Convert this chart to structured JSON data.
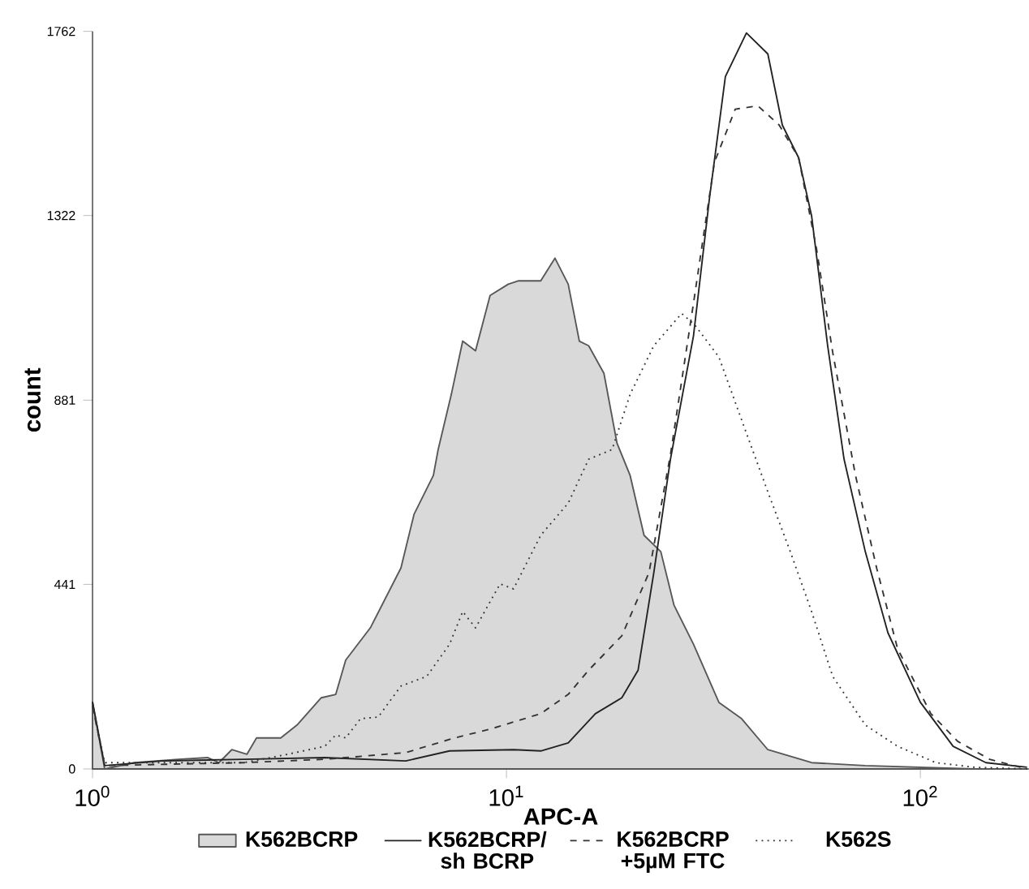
{
  "chart_data": {
    "type": "line",
    "xlabel": "APC-A",
    "ylabel": "count",
    "log": "x",
    "xlim": [
      1,
      183
    ],
    "ylim": [
      0,
      1762
    ],
    "xticks": [
      {
        "value": 1,
        "label": "10$^{0}$"
      },
      {
        "value": 10,
        "label": "10$^{1}$"
      },
      {
        "value": 100,
        "label": "10$^{2}$"
      }
    ],
    "yticks": [
      0,
      441,
      881,
      1322,
      1762
    ],
    "grid": false,
    "legend": "bottom",
    "marker": "none",
    "series": [
      {
        "name": "K562BCRP",
        "type": "area",
        "color": "#d9d9d9",
        "line_style": "solid",
        "x": [
          1,
          1.07,
          1.26,
          1.61,
          1.9,
          2.02,
          2.17,
          2.36,
          2.49,
          2.85,
          3.12,
          3.57,
          3.87,
          4.09,
          4.69,
          5.56,
          5.98,
          6.66,
          6.84,
          7.36,
          7.84,
          8.42,
          9.13,
          10.1,
          10.7,
          12.1,
          13.1,
          14.1,
          15,
          15.8,
          17.2,
          18.5,
          19.9,
          21.5,
          23.6,
          25.4,
          28.3,
          32.6,
          37,
          42.8,
          54.6,
          73.6,
          135,
          181
        ],
        "values": [
          160,
          0,
          15,
          23,
          27,
          15,
          46,
          35,
          74,
          74,
          105,
          170,
          178,
          260,
          337,
          480,
          608,
          701,
          763,
          895,
          1022,
          999,
          1131,
          1158,
          1166,
          1166,
          1220,
          1158,
          1022,
          1011,
          945,
          778,
          701,
          558,
          519,
          391,
          298,
          159,
          120,
          46,
          15,
          8,
          0,
          0
        ]
      },
      {
        "name": "K562BCRP/ sh BCRP",
        "color": "#222222",
        "line_style": "solid",
        "x": [
          1,
          1.07,
          1.47,
          2.32,
          3.64,
          5.71,
          7.29,
          10.4,
          12.1,
          14.1,
          16.4,
          19,
          20.8,
          22.7,
          24.9,
          28.3,
          30.9,
          33.8,
          38,
          42.8,
          46.4,
          50.8,
          54.6,
          59.7,
          65.4,
          73.6,
          83.5,
          100,
          120,
          144,
          181
        ],
        "values": [
          160,
          8,
          19,
          23,
          27,
          19,
          43,
          46,
          43,
          62,
          132,
          170,
          236,
          469,
          740,
          1034,
          1359,
          1654,
          1758,
          1708,
          1538,
          1460,
          1321,
          1011,
          740,
          519,
          325,
          159,
          54,
          15,
          4
        ]
      },
      {
        "name": "K562BCRP +5µM FTC",
        "color": "#333333",
        "line_style": "dashed",
        "x": [
          1,
          1.07,
          2.32,
          3.64,
          5.71,
          7.49,
          9.13,
          12.1,
          14.1,
          15.8,
          19,
          22.1,
          24.9,
          28.3,
          31.8,
          35.7,
          40.5,
          45.6,
          50.8,
          56.1,
          61.4,
          69.7,
          78.4,
          88.1,
          106,
          123,
          147,
          181
        ],
        "values": [
          150,
          8,
          15,
          23,
          39,
          74,
          95,
          132,
          178,
          236,
          318,
          469,
          751,
          1112,
          1449,
          1576,
          1584,
          1538,
          1460,
          1243,
          995,
          701,
          480,
          287,
          132,
          66,
          23,
          0
        ]
      },
      {
        "name": "K562S",
        "color": "#333333",
        "line_style": "dotted",
        "x": [
          1,
          1.07,
          2.32,
          2.96,
          3.64,
          3.87,
          4.09,
          4.44,
          4.9,
          5.56,
          6.42,
          7.29,
          7.84,
          8.42,
          9.65,
          10.4,
          12.1,
          14.1,
          15.8,
          18,
          19.9,
          22.7,
          26.5,
          28.5,
          32.6,
          38,
          42.8,
          48.5,
          54.6,
          61.4,
          73.6,
          88.1,
          109,
          135,
          181
        ],
        "values": [
          150,
          15,
          15,
          35,
          54,
          81,
          74,
          120,
          124,
          198,
          221,
          298,
          376,
          337,
          442,
          430,
          558,
          635,
          740,
          763,
          895,
          1011,
          1088,
          1061,
          984,
          802,
          662,
          519,
          376,
          221,
          105,
          54,
          15,
          4,
          0
        ]
      }
    ]
  }
}
